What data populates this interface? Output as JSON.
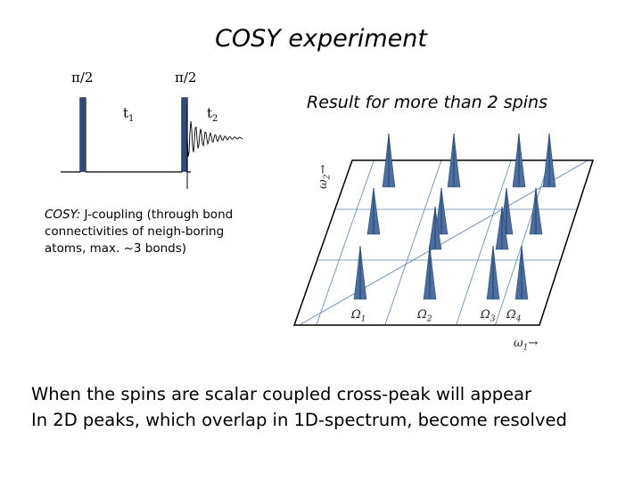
{
  "title": "COSY experiment",
  "pulse": {
    "pulse1_label": "π/2",
    "pulse2_label": "π/2",
    "t1_main": "t",
    "t1_sub": "1",
    "t2_main": "t",
    "t2_sub": "2"
  },
  "result_label": "Result for more than 2 spins",
  "cosy_text": {
    "lead": "COSY:",
    "rest": " J-coupling (through bond connectivities of neigh-boring atoms, max. ~3 bonds)"
  },
  "axes": {
    "w2_main": "ω",
    "w2_sub": "2",
    "w2_arrow": "→",
    "w1_main": "ω",
    "w1_sub": "1",
    "w1_arrow": "→",
    "omega": [
      {
        "main": "Ω",
        "sub": "1"
      },
      {
        "main": "Ω",
        "sub": "2"
      },
      {
        "main": "Ω",
        "sub": "3"
      },
      {
        "main": "Ω",
        "sub": "4"
      }
    ]
  },
  "bottom_text": {
    "line1": "When the spins are scalar coupled cross-peak will appear",
    "line2": "In 2D peaks, which overlap in 1D-spectrum, become resolved"
  },
  "colors": {
    "peak_fill": "#4a6fa0",
    "peak_dark": "#2e4a76",
    "grid": "#5a86b4",
    "plane_edge": "#000000"
  }
}
